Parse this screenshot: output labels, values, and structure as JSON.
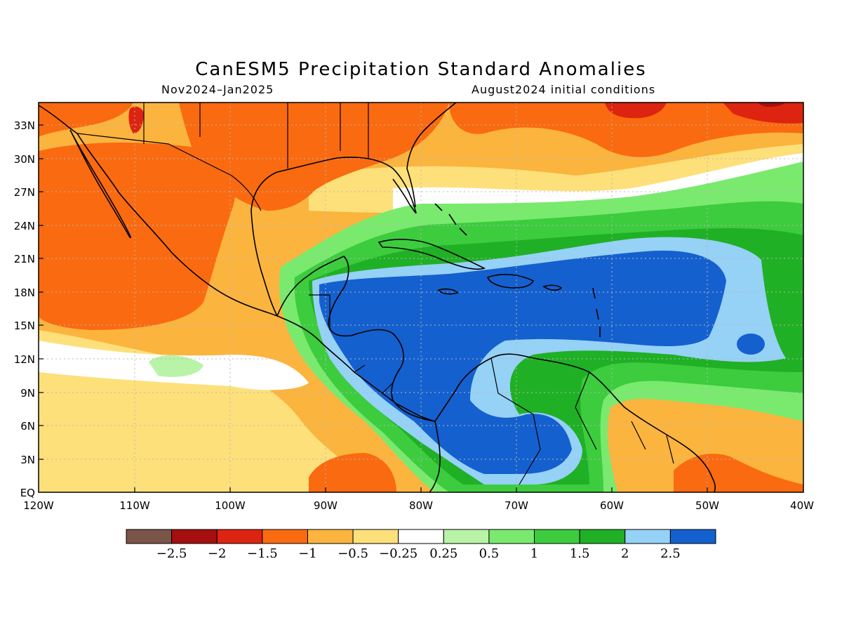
{
  "title": "CanESM5 Precipitation Standard Anomalies",
  "subtitle_left": "Nov2024–Jan2025",
  "subtitle_right": "August2024 initial conditions",
  "y_ticks": [
    "33N",
    "30N",
    "27N",
    "24N",
    "21N",
    "18N",
    "15N",
    "12N",
    "9N",
    "6N",
    "3N",
    "EQ"
  ],
  "x_ticks": [
    "120W",
    "110W",
    "100W",
    "90W",
    "80W",
    "70W",
    "60W",
    "50W",
    "40W"
  ],
  "legend": {
    "colors": [
      "#7b5548",
      "#a50f0f",
      "#dd2410",
      "#fa6a10",
      "#fbb43e",
      "#fde07a",
      "#ffffff",
      "#b8f3a8",
      "#79ea6e",
      "#3ccc3e",
      "#20b025",
      "#96d1f6",
      "#1560cf"
    ],
    "labels": [
      "−2.5",
      "−2",
      "−1.5",
      "−1",
      "−0.5",
      "−0.25",
      "0.25",
      "0.5",
      "1",
      "1.5",
      "2",
      "2.5"
    ]
  },
  "chart_data": {
    "type": "heatmap",
    "variable": "Precipitation Standard Anomalies",
    "model": "CanESM5",
    "period": "Nov2024–Jan2025",
    "initial_conditions": "August2024",
    "lon_range": [
      -120,
      -40
    ],
    "lat_range": [
      0,
      35
    ],
    "color_levels": [
      -2.5,
      -2,
      -1.5,
      -1,
      -0.5,
      -0.25,
      0.25,
      0.5,
      1,
      1.5,
      2,
      2.5
    ],
    "grid": true
  }
}
